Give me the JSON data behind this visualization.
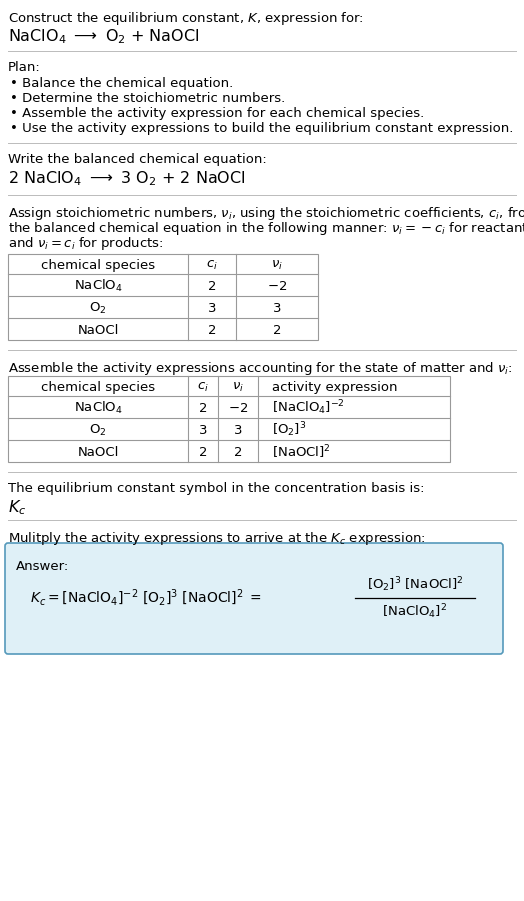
{
  "bg_color": "#ffffff",
  "title_line1": "Construct the equilibrium constant, $K$, expression for:",
  "title_line2_text": "NaClO",
  "plan_header": "Plan:",
  "plan_items": [
    "• Balance the chemical equation.",
    "• Determine the stoichiometric numbers.",
    "• Assemble the activity expression for each chemical species.",
    "• Use the activity expressions to build the equilibrium constant expression."
  ],
  "balanced_header": "Write the balanced chemical equation:",
  "stoich_intro_lines": [
    "Assign stoichiometric numbers, $\\nu_i$, using the stoichiometric coefficients, $c_i$, from",
    "the balanced chemical equation in the following manner: $\\nu_i = -c_i$ for reactants",
    "and $\\nu_i = c_i$ for products:"
  ],
  "table1_headers": [
    "chemical species",
    "$c_i$",
    "$\\nu_i$"
  ],
  "table1_rows": [
    [
      "$\\mathrm{NaClO_4}$",
      "2",
      "$-2$"
    ],
    [
      "$\\mathrm{O_2}$",
      "3",
      "3"
    ],
    [
      "NaOCl",
      "2",
      "2"
    ]
  ],
  "assemble_intro": "Assemble the activity expressions accounting for the state of matter and $\\nu_i$:",
  "table2_headers": [
    "chemical species",
    "$c_i$",
    "$\\nu_i$",
    "activity expression"
  ],
  "table2_rows": [
    [
      "$\\mathrm{NaClO_4}$",
      "2",
      "$-2$",
      "$[\\mathrm{NaClO_4}]^{-2}$"
    ],
    [
      "$\\mathrm{O_2}$",
      "3",
      "3",
      "$[\\mathrm{O_2}]^{3}$"
    ],
    [
      "NaOCl",
      "2",
      "2",
      "$[\\mathrm{NaOCl}]^{2}$"
    ]
  ],
  "kc_symbol_intro": "The equilibrium constant symbol in the concentration basis is:",
  "kc_symbol": "$K_c$",
  "multiply_intro": "Mulitply the activity expressions to arrive at the $K_c$ expression:",
  "answer_box_color": "#dff0f7",
  "answer_border_color": "#5599bb",
  "font_size_body": 9.5,
  "font_size_title2": 11.5,
  "font_size_balanced": 11.5,
  "table_font_size": 9.5
}
